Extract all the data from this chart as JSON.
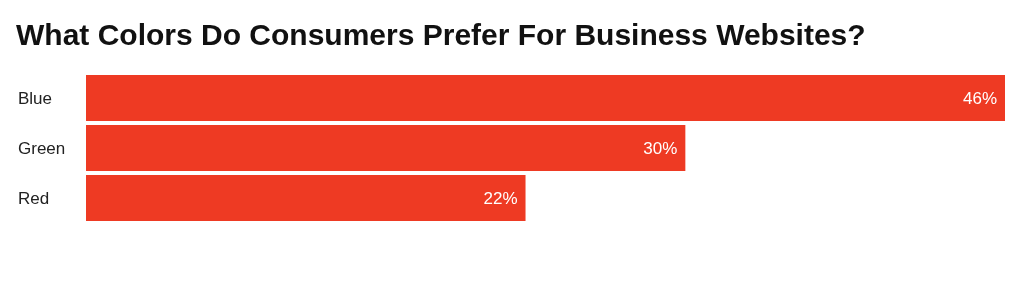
{
  "chart_data": {
    "type": "bar",
    "orientation": "horizontal",
    "title": "What Colors Do Consumers Prefer For Business Websites?",
    "categories": [
      "Blue",
      "Green",
      "Red"
    ],
    "values": [
      46,
      30,
      22
    ],
    "value_labels": [
      "46%",
      "30%",
      "22%"
    ],
    "color": "#ee3a23"
  }
}
